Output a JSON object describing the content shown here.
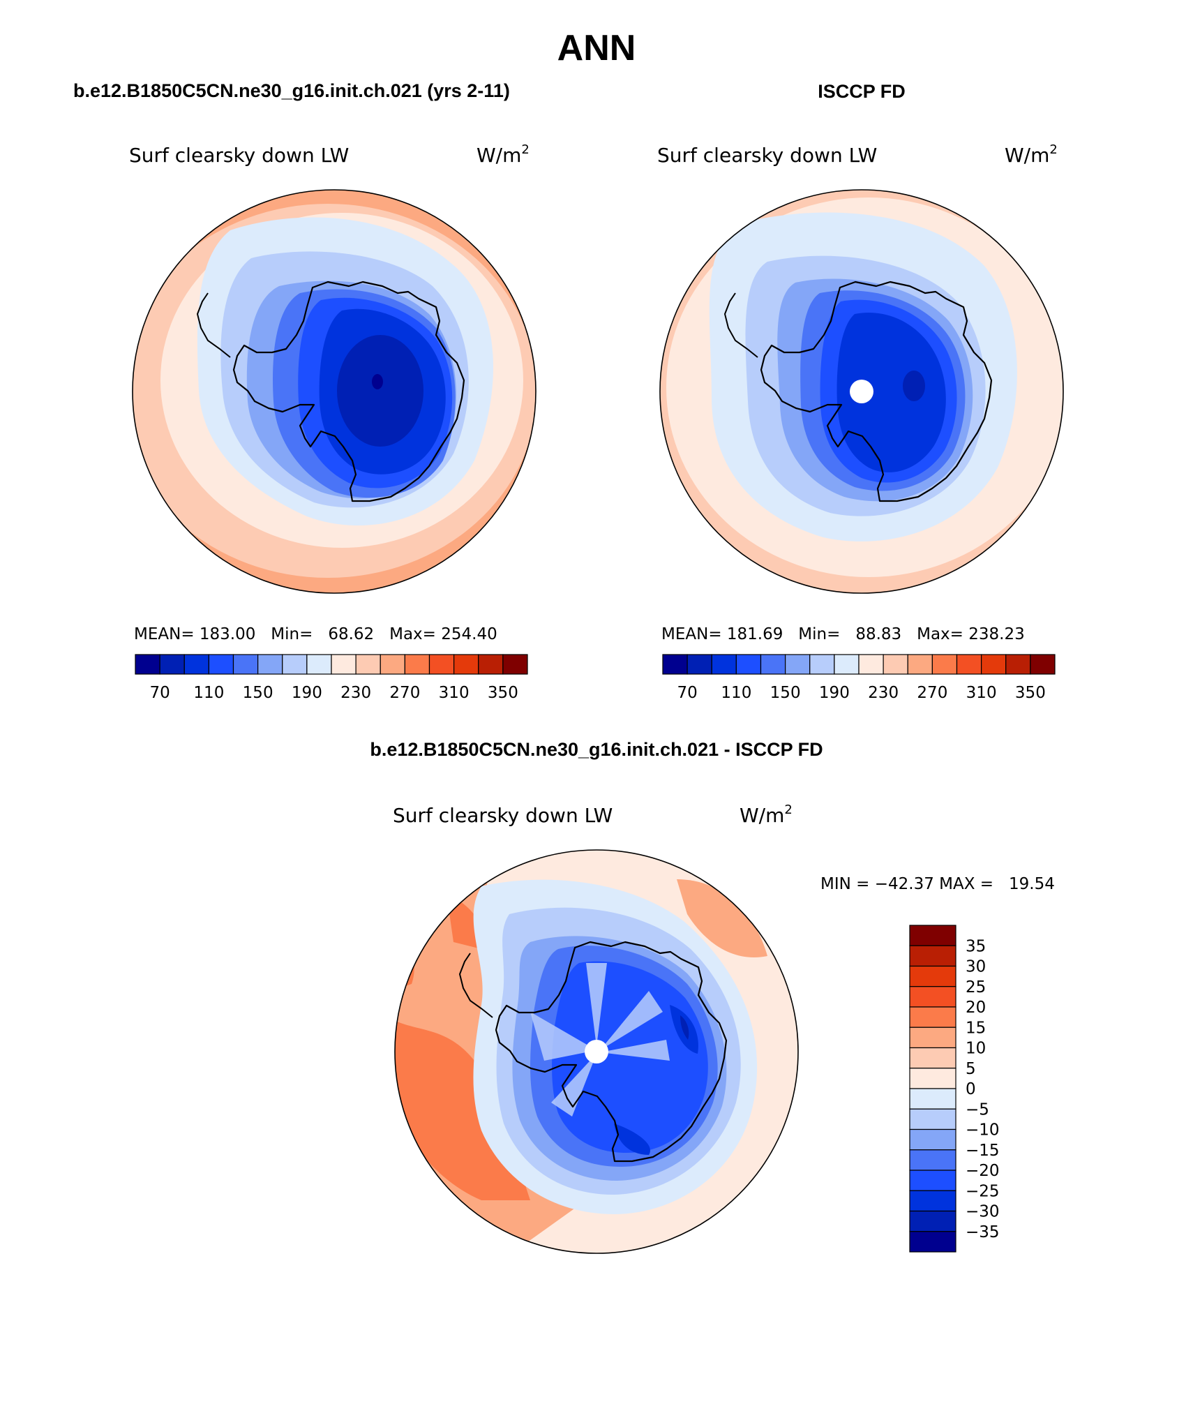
{
  "page": {
    "title": "ANN",
    "bottom_title": "b.e12.B1850C5CN.ne30_g16.init.ch.021 - ISCCP FD"
  },
  "colors": {
    "levels": [
      "#00008f",
      "#0020b4",
      "#0033dd",
      "#1d4fff",
      "#4a74f7",
      "#84a6f7",
      "#b7cdfb",
      "#dcebfc",
      "#feeadf",
      "#fdcbb3",
      "#fca981",
      "#fb7b4a",
      "#f35023",
      "#e43a0b",
      "#b91f04",
      "#7f0000"
    ],
    "diff_levels": [
      "#00008f",
      "#0020b4",
      "#0033dd",
      "#1d4fff",
      "#4a74f7",
      "#84a6f7",
      "#b7cdfb",
      "#dcebfc",
      "#feeadf",
      "#fdcbb3",
      "#fca981",
      "#fb7b4a",
      "#f35023",
      "#e43a0b",
      "#b91f04",
      "#7f0000"
    ]
  },
  "panels": [
    {
      "header": "b.e12.B1850C5CN.ne30_g16.init.ch.021 (yrs 2-11)",
      "variable": "Surf clearsky down LW",
      "units": "W/m",
      "units_sup": "2",
      "stats": "MEAN= 183.00   Min=   68.62   Max= 254.40",
      "pole_hole": false
    },
    {
      "header": "ISCCP FD",
      "variable": "Surf clearsky down LW",
      "units": "W/m",
      "units_sup": "2",
      "stats": "MEAN= 181.69   Min=   88.83   Max= 238.23",
      "pole_hole": true
    }
  ],
  "colorbar_ticks": [
    "70",
    "110",
    "150",
    "190",
    "230",
    "270",
    "310",
    "350"
  ],
  "diff_panel": {
    "variable": "Surf clearsky down LW",
    "units": "W/m",
    "units_sup": "2",
    "minmax": "MIN = −42.37 MAX =   19.54",
    "ticks": [
      "35",
      "30",
      "25",
      "20",
      "15",
      "10",
      "5",
      "0",
      "−5",
      "−10",
      "−15",
      "−20",
      "−25",
      "−30",
      "−35"
    ]
  }
}
